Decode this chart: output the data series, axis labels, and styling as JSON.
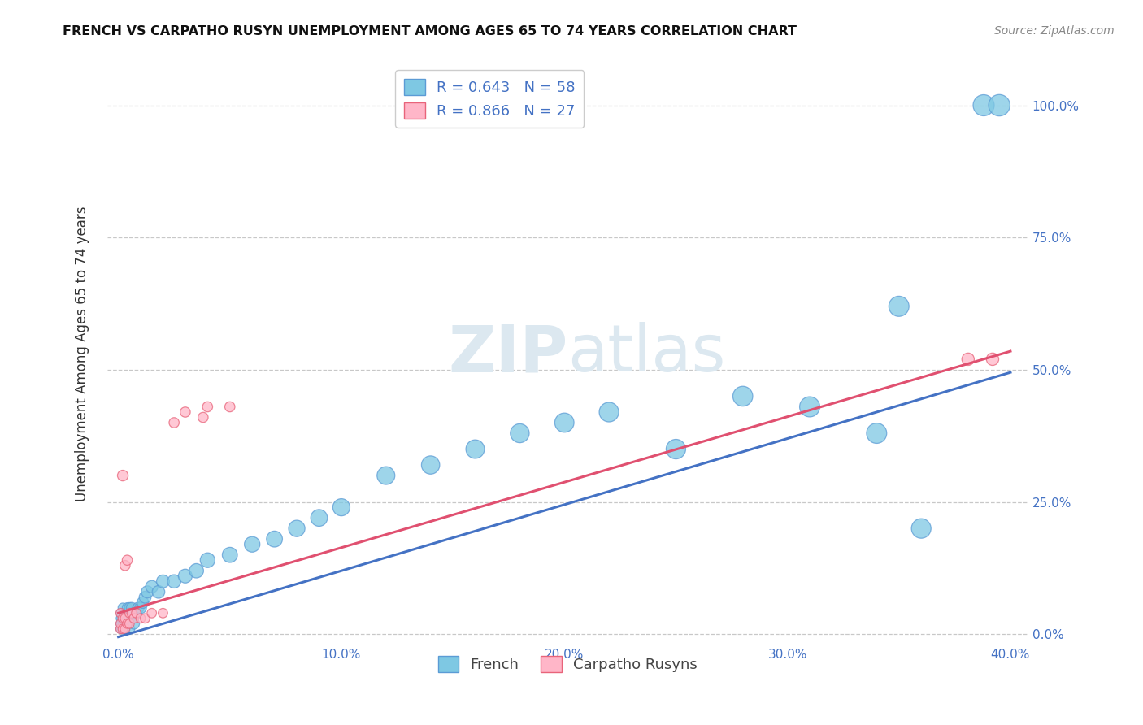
{
  "title": "FRENCH VS CARPATHO RUSYN UNEMPLOYMENT AMONG AGES 65 TO 74 YEARS CORRELATION CHART",
  "source": "Source: ZipAtlas.com",
  "ylabel_label": "Unemployment Among Ages 65 to 74 years",
  "french_R": 0.643,
  "french_N": 58,
  "carprusyn_R": 0.866,
  "carprusyn_N": 27,
  "french_color": "#7ec8e3",
  "carprusyn_color": "#ffb6c8",
  "french_edge_color": "#5b9bd5",
  "carprusyn_edge_color": "#e8647a",
  "french_line_color": "#4472c4",
  "carprusyn_line_color": "#e05070",
  "tick_color": "#4472c4",
  "legend_label_french": "French",
  "legend_label_carprusyn": "Carpatho Rusyns",
  "watermark_color": "#dce8f0",
  "french_x": [
    0.001,
    0.001,
    0.001,
    0.001,
    0.001,
    0.001,
    0.002,
    0.002,
    0.002,
    0.002,
    0.002,
    0.003,
    0.003,
    0.003,
    0.003,
    0.004,
    0.004,
    0.004,
    0.005,
    0.005,
    0.005,
    0.006,
    0.006,
    0.007,
    0.007,
    0.008,
    0.009,
    0.01,
    0.011,
    0.012,
    0.013,
    0.015,
    0.018,
    0.02,
    0.025,
    0.03,
    0.035,
    0.04,
    0.05,
    0.06,
    0.07,
    0.08,
    0.09,
    0.1,
    0.12,
    0.14,
    0.16,
    0.18,
    0.2,
    0.22,
    0.25,
    0.28,
    0.31,
    0.34,
    0.35,
    0.36,
    0.388,
    0.395
  ],
  "french_y": [
    0.01,
    0.01,
    0.02,
    0.02,
    0.03,
    0.04,
    0.01,
    0.02,
    0.02,
    0.03,
    0.05,
    0.01,
    0.02,
    0.03,
    0.04,
    0.02,
    0.03,
    0.05,
    0.01,
    0.03,
    0.05,
    0.03,
    0.05,
    0.02,
    0.04,
    0.04,
    0.05,
    0.05,
    0.06,
    0.07,
    0.08,
    0.09,
    0.08,
    0.1,
    0.1,
    0.11,
    0.12,
    0.14,
    0.15,
    0.17,
    0.18,
    0.2,
    0.22,
    0.24,
    0.3,
    0.32,
    0.35,
    0.38,
    0.4,
    0.42,
    0.35,
    0.45,
    0.43,
    0.38,
    0.62,
    0.2,
    1.0,
    1.0
  ],
  "french_sizes": [
    60,
    60,
    60,
    60,
    60,
    60,
    70,
    70,
    70,
    70,
    70,
    75,
    75,
    75,
    75,
    80,
    80,
    80,
    85,
    85,
    85,
    90,
    90,
    95,
    95,
    100,
    100,
    105,
    105,
    110,
    115,
    120,
    125,
    130,
    140,
    150,
    160,
    170,
    180,
    190,
    200,
    210,
    220,
    230,
    250,
    260,
    270,
    280,
    290,
    300,
    300,
    310,
    320,
    320,
    320,
    300,
    350,
    360
  ],
  "carprusyn_x": [
    0.001,
    0.001,
    0.001,
    0.002,
    0.002,
    0.002,
    0.003,
    0.003,
    0.003,
    0.004,
    0.004,
    0.005,
    0.005,
    0.006,
    0.007,
    0.008,
    0.01,
    0.012,
    0.015,
    0.02,
    0.025,
    0.03,
    0.038,
    0.04,
    0.05,
    0.381,
    0.392
  ],
  "carprusyn_y": [
    0.01,
    0.02,
    0.04,
    0.01,
    0.03,
    0.3,
    0.01,
    0.03,
    0.13,
    0.02,
    0.14,
    0.02,
    0.04,
    0.04,
    0.03,
    0.04,
    0.03,
    0.03,
    0.04,
    0.04,
    0.4,
    0.42,
    0.41,
    0.43,
    0.43,
    0.52,
    0.52
  ],
  "carprusyn_sizes": [
    70,
    70,
    70,
    70,
    70,
    90,
    70,
    70,
    80,
    70,
    80,
    70,
    70,
    70,
    70,
    70,
    70,
    70,
    70,
    70,
    80,
    80,
    80,
    80,
    80,
    120,
    120
  ],
  "french_line_x": [
    0.0,
    0.4
  ],
  "french_line_y": [
    -0.005,
    0.495
  ],
  "carprusyn_line_x": [
    0.0,
    0.4
  ],
  "carprusyn_line_y": [
    0.04,
    0.535
  ],
  "xlim": [
    -0.005,
    0.408
  ],
  "ylim": [
    -0.02,
    1.08
  ],
  "xtick_vals": [
    0.0,
    0.1,
    0.2,
    0.3,
    0.4
  ],
  "ytick_vals": [
    0.0,
    0.25,
    0.5,
    0.75,
    1.0
  ]
}
